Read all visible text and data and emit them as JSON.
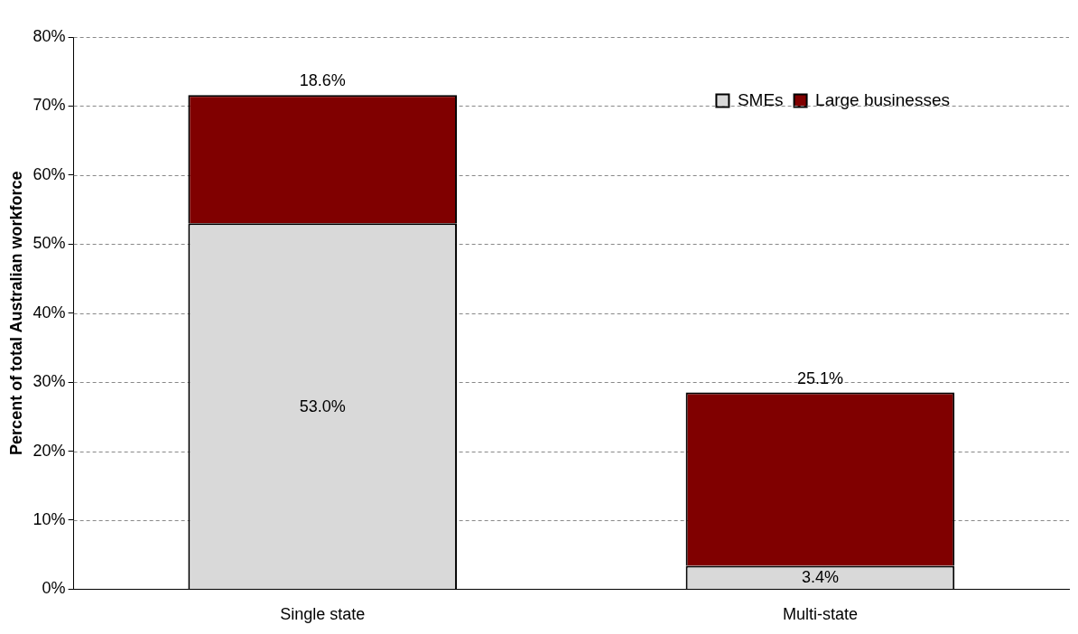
{
  "chart_data": {
    "type": "bar",
    "stacked": true,
    "ylabel": "Percent of total Australian workforce",
    "categories": [
      "Single state",
      "Multi-state"
    ],
    "series": [
      {
        "name": "SMEs",
        "color": "#d9d9d9",
        "values": [
          53.0,
          3.4
        ],
        "value_labels": [
          "53.0%",
          "3.4%"
        ]
      },
      {
        "name": "Large businesses",
        "color": "#800000",
        "values": [
          18.6,
          25.1
        ],
        "value_labels": [
          "18.6%",
          "25.1%"
        ]
      }
    ],
    "ylim": [
      0,
      80
    ],
    "yticks": [
      {
        "value": 0,
        "label": "0%"
      },
      {
        "value": 10,
        "label": "10%"
      },
      {
        "value": 20,
        "label": "20%"
      },
      {
        "value": 30,
        "label": "30%"
      },
      {
        "value": 40,
        "label": "40%"
      },
      {
        "value": 50,
        "label": "50%"
      },
      {
        "value": 60,
        "label": "60%"
      },
      {
        "value": 70,
        "label": "70%"
      },
      {
        "value": 80,
        "label": "80%"
      }
    ],
    "grid": "y",
    "legend": "top right"
  }
}
